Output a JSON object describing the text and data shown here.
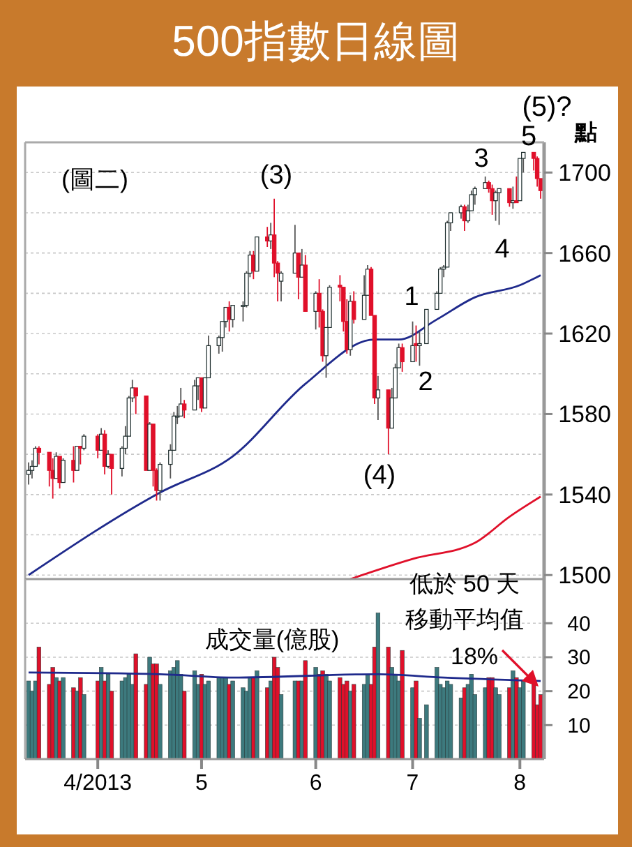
{
  "chart_data": [
    {
      "type": "candlestick",
      "title": "500指數日線圖",
      "ylabel": "點",
      "x": [
        "2013-03-12",
        "2013-03-13",
        "2013-03-14",
        "2013-03-15",
        "2013-03-18",
        "2013-03-19",
        "2013-03-20",
        "2013-03-21",
        "2013-03-22",
        "2013-03-25",
        "2013-03-26",
        "2013-03-27",
        "2013-03-28",
        "2013-04-01",
        "2013-04-02",
        "2013-04-03",
        "2013-04-04",
        "2013-04-05",
        "2013-04-08",
        "2013-04-09",
        "2013-04-10",
        "2013-04-11",
        "2013-04-12",
        "2013-04-15",
        "2013-04-16",
        "2013-04-17",
        "2013-04-18",
        "2013-04-19",
        "2013-04-22",
        "2013-04-23",
        "2013-04-24",
        "2013-04-25",
        "2013-04-26",
        "2013-04-29",
        "2013-04-30",
        "2013-05-01",
        "2013-05-02",
        "2013-05-03",
        "2013-05-06",
        "2013-05-07",
        "2013-05-08",
        "2013-05-09",
        "2013-05-10",
        "2013-05-13",
        "2013-05-14",
        "2013-05-15",
        "2013-05-16",
        "2013-05-17",
        "2013-05-20",
        "2013-05-21",
        "2013-05-22",
        "2013-05-23",
        "2013-05-24",
        "2013-05-28",
        "2013-05-29",
        "2013-05-30",
        "2013-05-31",
        "2013-06-03",
        "2013-06-04",
        "2013-06-05",
        "2013-06-06",
        "2013-06-07",
        "2013-06-10",
        "2013-06-11",
        "2013-06-12",
        "2013-06-13",
        "2013-06-14",
        "2013-06-17",
        "2013-06-18",
        "2013-06-19",
        "2013-06-20",
        "2013-06-21",
        "2013-06-24",
        "2013-06-25",
        "2013-06-26",
        "2013-06-27",
        "2013-06-28",
        "2013-07-01",
        "2013-07-02",
        "2013-07-03",
        "2013-07-05",
        "2013-07-08",
        "2013-07-09",
        "2013-07-10",
        "2013-07-11",
        "2013-07-12",
        "2013-07-15",
        "2013-07-16",
        "2013-07-17",
        "2013-07-18",
        "2013-07-19",
        "2013-07-22",
        "2013-07-23",
        "2013-07-24",
        "2013-07-25",
        "2013-07-26",
        "2013-07-29",
        "2013-07-30",
        "2013-07-31",
        "2013-08-01",
        "2013-08-02",
        "2013-08-05",
        "2013-08-06",
        "2013-08-07"
      ],
      "ohlc": [
        [
          1550,
          1556,
          1545,
          1552
        ],
        [
          1552,
          1557,
          1548,
          1554
        ],
        [
          1554,
          1564,
          1554,
          1563
        ],
        [
          1563,
          1564,
          1555,
          1561
        ],
        [
          1561,
          1561,
          1544,
          1552
        ],
        [
          1552,
          1558,
          1538,
          1548
        ],
        [
          1548,
          1561,
          1548,
          1559
        ],
        [
          1559,
          1559,
          1543,
          1546
        ],
        [
          1546,
          1558,
          1546,
          1557
        ],
        [
          1557,
          1564,
          1546,
          1552
        ],
        [
          1552,
          1564,
          1552,
          1564
        ],
        [
          1564,
          1564,
          1555,
          1563
        ],
        [
          1563,
          1570,
          1562,
          1569
        ],
        [
          1569,
          1570,
          1558,
          1562
        ],
        [
          1562,
          1573,
          1562,
          1570
        ],
        [
          1570,
          1572,
          1550,
          1554
        ],
        [
          1554,
          1562,
          1553,
          1560
        ],
        [
          1560,
          1560,
          1540,
          1553
        ],
        [
          1553,
          1564,
          1549,
          1563
        ],
        [
          1563,
          1574,
          1560,
          1569
        ],
        [
          1569,
          1589,
          1569,
          1588
        ],
        [
          1588,
          1597,
          1586,
          1593
        ],
        [
          1593,
          1593,
          1580,
          1589
        ],
        [
          1589,
          1589,
          1552,
          1552
        ],
        [
          1552,
          1576,
          1552,
          1575
        ],
        [
          1575,
          1575,
          1544,
          1552
        ],
        [
          1552,
          1553,
          1537,
          1542
        ],
        [
          1542,
          1556,
          1537,
          1555
        ],
        [
          1555,
          1565,
          1548,
          1562
        ],
        [
          1562,
          1581,
          1562,
          1579
        ],
        [
          1579,
          1584,
          1575,
          1579
        ],
        [
          1579,
          1593,
          1579,
          1585
        ],
        [
          1585,
          1587,
          1578,
          1582
        ],
        [
          1582,
          1597,
          1582,
          1594
        ],
        [
          1594,
          1598,
          1587,
          1598
        ],
        [
          1598,
          1598,
          1581,
          1583
        ],
        [
          1583,
          1598,
          1583,
          1598
        ],
        [
          1598,
          1619,
          1598,
          1614
        ],
        [
          1614,
          1619,
          1610,
          1618
        ],
        [
          1618,
          1626,
          1611,
          1626
        ],
        [
          1626,
          1633,
          1623,
          1633
        ],
        [
          1633,
          1636,
          1621,
          1627
        ],
        [
          1627,
          1634,
          1623,
          1634
        ],
        [
          1634,
          1636,
          1626,
          1634
        ],
        [
          1634,
          1651,
          1633,
          1650
        ],
        [
          1650,
          1661,
          1648,
          1659
        ],
        [
          1659,
          1661,
          1647,
          1651
        ],
        [
          1651,
          1668,
          1651,
          1668
        ],
        [
          1668,
          1673,
          1663,
          1666
        ],
        [
          1666,
          1675,
          1662,
          1669
        ],
        [
          1669,
          1687,
          1648,
          1655
        ],
        [
          1655,
          1656,
          1636,
          1650
        ],
        [
          1646,
          1651,
          1636,
          1650
        ],
        [
          1650,
          1674,
          1650,
          1660
        ],
        [
          1660,
          1660,
          1637,
          1648
        ],
        [
          1648,
          1662,
          1648,
          1654
        ],
        [
          1654,
          1659,
          1631,
          1631
        ],
        [
          1631,
          1641,
          1622,
          1640
        ],
        [
          1640,
          1647,
          1623,
          1631
        ],
        [
          1631,
          1632,
          1606,
          1609
        ],
        [
          1609,
          1623,
          1598,
          1623
        ],
        [
          1623,
          1644,
          1623,
          1643
        ],
        [
          1644,
          1649,
          1636,
          1643
        ],
        [
          1643,
          1643,
          1621,
          1626
        ],
        [
          1626,
          1637,
          1610,
          1612
        ],
        [
          1612,
          1639,
          1609,
          1636
        ],
        [
          1636,
          1641,
          1625,
          1627
        ],
        [
          1627,
          1649,
          1627,
          1639
        ],
        [
          1639,
          1654,
          1639,
          1652
        ],
        [
          1652,
          1653,
          1629,
          1629
        ],
        [
          1629,
          1629,
          1585,
          1588
        ],
        [
          1588,
          1599,
          1577,
          1592
        ],
        [
          1592,
          1592,
          1560,
          1573
        ],
        [
          1573,
          1593,
          1573,
          1588
        ],
        [
          1588,
          1605,
          1588,
          1603
        ],
        [
          1603,
          1615,
          1603,
          1613
        ],
        [
          1613,
          1615,
          1601,
          1606
        ],
        [
          1606,
          1626,
          1606,
          1614
        ],
        [
          1615,
          1624,
          1606,
          1614
        ],
        [
          1614,
          1621,
          1604,
          1615
        ],
        [
          1615,
          1632,
          1615,
          1632
        ],
        [
          1632,
          1641,
          1632,
          1640
        ],
        [
          1640,
          1653,
          1640,
          1652
        ],
        [
          1652,
          1654,
          1648,
          1653
        ],
        [
          1653,
          1676,
          1653,
          1675
        ],
        [
          1675,
          1680,
          1671,
          1680
        ],
        [
          1680,
          1684,
          1677,
          1683
        ],
        [
          1683,
          1684,
          1671,
          1676
        ],
        [
          1676,
          1684,
          1675,
          1681
        ],
        [
          1681,
          1691,
          1681,
          1689
        ],
        [
          1689,
          1693,
          1684,
          1692
        ],
        [
          1692,
          1698,
          1692,
          1695
        ],
        [
          1695,
          1696,
          1690,
          1692
        ],
        [
          1692,
          1694,
          1679,
          1686
        ],
        [
          1686,
          1691,
          1676,
          1690
        ],
        [
          1690,
          1692,
          1674,
          1692
        ],
        [
          1692,
          1692,
          1683,
          1685
        ],
        [
          1685,
          1693,
          1682,
          1686
        ],
        [
          1686,
          1698,
          1685,
          1685
        ],
        [
          1686,
          1707,
          1686,
          1707
        ],
        [
          1707,
          1710,
          1700,
          1710
        ],
        [
          1710,
          1710,
          1701,
          1707
        ],
        [
          1707,
          1708,
          1693,
          1697
        ],
        [
          1697,
          1697,
          1687,
          1691
        ]
      ],
      "series": [
        {
          "type": "line",
          "color": "#1f2a8c",
          "x": [
            "2013-03-12",
            "2013-04-19",
            "2013-05-10",
            "2013-05-31",
            "2013-06-20",
            "2013-06-27",
            "2013-07-08",
            "2013-07-19",
            "2013-08-01",
            "2013-08-07"
          ],
          "values": [
            1500,
            1541,
            1559,
            1595,
            1617,
            1617,
            1627,
            1638,
            1644,
            1649
          ]
        },
        {
          "type": "line",
          "color": "#e0102a",
          "x": [
            "2013-06-13",
            "2013-07-01",
            "2013-07-19",
            "2013-07-29",
            "2013-08-07"
          ],
          "values": [
            1498,
            1508,
            1516,
            1529,
            1539
          ]
        }
      ],
      "xlim": [
        "2013-03-11",
        "2013-08-08"
      ],
      "ylim": [
        1498,
        1715
      ],
      "yticks": [
        1500,
        {
          "value": 1520,
          "label": null
        },
        1540,
        {
          "value": 1560,
          "label": null
        },
        1580,
        {
          "value": 1600,
          "label": null
        },
        1620,
        {
          "value": 1640,
          "label": null
        },
        1660,
        {
          "value": 1680,
          "label": null
        },
        1700
      ],
      "tick_labels": "y",
      "grid": "y",
      "annotations": [
        "(圖二)",
        "(5)?",
        "5",
        "(3)",
        "(4)",
        "1",
        "2",
        "3",
        "4"
      ]
    },
    {
      "type": "bar",
      "xlim": [
        "2013-03-11",
        "2013-08-08"
      ],
      "ylim": [
        0,
        53
      ],
      "yticks": [
        10,
        20,
        30,
        40
      ],
      "xticks": [
        {
          "value": "2013-04-01",
          "label": "4/2013"
        },
        {
          "value": "2013-05-01",
          "label": "5"
        },
        {
          "value": "2013-06-03",
          "label": "6"
        },
        {
          "value": "2013-07-01",
          "label": "7"
        },
        {
          "value": "2013-08-01",
          "label": "8"
        }
      ],
      "grid": "y",
      "series": [
        {
          "type": "bar",
          "x": [
            "2013-03-12",
            "2013-03-13",
            "2013-03-14",
            "2013-03-15",
            "2013-03-18",
            "2013-03-19",
            "2013-03-20",
            "2013-03-21",
            "2013-03-22",
            "2013-03-25",
            "2013-03-26",
            "2013-03-27",
            "2013-03-28",
            "2013-04-01",
            "2013-04-02",
            "2013-04-03",
            "2013-04-04",
            "2013-04-05",
            "2013-04-08",
            "2013-04-09",
            "2013-04-10",
            "2013-04-11",
            "2013-04-12",
            "2013-04-15",
            "2013-04-16",
            "2013-04-17",
            "2013-04-18",
            "2013-04-19",
            "2013-04-22",
            "2013-04-23",
            "2013-04-24",
            "2013-04-25",
            "2013-04-26",
            "2013-04-29",
            "2013-04-30",
            "2013-05-01",
            "2013-05-02",
            "2013-05-03",
            "2013-05-06",
            "2013-05-07",
            "2013-05-08",
            "2013-05-09",
            "2013-05-10",
            "2013-05-13",
            "2013-05-14",
            "2013-05-15",
            "2013-05-16",
            "2013-05-17",
            "2013-05-20",
            "2013-05-21",
            "2013-05-22",
            "2013-05-23",
            "2013-05-24",
            "2013-05-28",
            "2013-05-29",
            "2013-05-30",
            "2013-05-31",
            "2013-06-03",
            "2013-06-04",
            "2013-06-05",
            "2013-06-06",
            "2013-06-07",
            "2013-06-10",
            "2013-06-11",
            "2013-06-12",
            "2013-06-13",
            "2013-06-14",
            "2013-06-17",
            "2013-06-18",
            "2013-06-19",
            "2013-06-20",
            "2013-06-21",
            "2013-06-24",
            "2013-06-25",
            "2013-06-26",
            "2013-06-27",
            "2013-06-28",
            "2013-07-01",
            "2013-07-02",
            "2013-07-03",
            "2013-07-05",
            "2013-07-08",
            "2013-07-09",
            "2013-07-10",
            "2013-07-11",
            "2013-07-12",
            "2013-07-15",
            "2013-07-16",
            "2013-07-17",
            "2013-07-18",
            "2013-07-19",
            "2013-07-22",
            "2013-07-23",
            "2013-07-24",
            "2013-07-25",
            "2013-07-26",
            "2013-07-29",
            "2013-07-30",
            "2013-07-31",
            "2013-08-01",
            "2013-08-02",
            "2013-08-05",
            "2013-08-06",
            "2013-08-07"
          ],
          "colors": [
            "#3d7a7e",
            "#3d7a7e",
            "#3d7a7e",
            "#e0102a",
            "#e0102a",
            "#e0102a",
            "#3d7a7e",
            "#e0102a",
            "#3d7a7e",
            "#e0102a",
            "#3d7a7e",
            "#e0102a",
            "#3d7a7e",
            "#e0102a",
            "#3d7a7e",
            "#e0102a",
            "#3d7a7e",
            "#e0102a",
            "#3d7a7e",
            "#3d7a7e",
            "#3d7a7e",
            "#3d7a7e",
            "#e0102a",
            "#e0102a",
            "#3d7a7e",
            "#e0102a",
            "#e0102a",
            "#3d7a7e",
            "#3d7a7e",
            "#3d7a7e",
            "#3d7a7e",
            "#3d7a7e",
            "#e0102a",
            "#3d7a7e",
            "#3d7a7e",
            "#e0102a",
            "#3d7a7e",
            "#3d7a7e",
            "#3d7a7e",
            "#3d7a7e",
            "#3d7a7e",
            "#e0102a",
            "#3d7a7e",
            "#3d7a7e",
            "#3d7a7e",
            "#3d7a7e",
            "#e0102a",
            "#3d7a7e",
            "#e0102a",
            "#3d7a7e",
            "#e0102a",
            "#e0102a",
            "#3d7a7e",
            "#3d7a7e",
            "#e0102a",
            "#3d7a7e",
            "#e0102a",
            "#3d7a7e",
            "#e0102a",
            "#e0102a",
            "#3d7a7e",
            "#3d7a7e",
            "#e0102a",
            "#e0102a",
            "#e0102a",
            "#3d7a7e",
            "#e0102a",
            "#3d7a7e",
            "#3d7a7e",
            "#e0102a",
            "#e0102a",
            "#3d7a7e",
            "#e0102a",
            "#3d7a7e",
            "#3d7a7e",
            "#3d7a7e",
            "#e0102a",
            "#3d7a7e",
            "#e0102a",
            "#3d7a7e",
            "#3d7a7e",
            "#3d7a7e",
            "#3d7a7e",
            "#3d7a7e",
            "#3d7a7e",
            "#3d7a7e",
            "#3d7a7e",
            "#e0102a",
            "#3d7a7e",
            "#3d7a7e",
            "#3d7a7e",
            "#3d7a7e",
            "#e0102a",
            "#e0102a",
            "#3d7a7e",
            "#3d7a7e",
            "#e0102a",
            "#3d7a7e",
            "#e0102a",
            "#3d7a7e",
            "#3d7a7e",
            "#e0102a",
            "#e0102a",
            "#e0102a"
          ],
          "values": [
            23,
            20,
            23,
            33,
            22,
            27,
            24,
            23,
            24,
            21,
            20,
            24,
            19,
            23,
            27,
            23,
            25,
            20,
            23,
            24,
            25,
            22,
            31,
            22,
            30,
            28,
            28,
            22,
            26,
            27,
            29,
            25,
            20,
            26,
            22,
            25,
            22,
            23,
            24,
            24,
            24,
            22,
            23,
            21,
            20,
            24,
            24,
            26,
            21,
            23,
            30,
            27,
            19,
            23,
            23,
            23,
            29,
            27,
            25,
            26,
            25,
            23,
            24,
            22,
            23,
            20,
            22,
            22,
            25,
            22,
            33,
            43,
            33,
            27,
            25,
            23,
            32,
            21,
            23,
            12,
            16,
            27,
            22,
            21,
            23,
            22,
            18,
            21,
            22,
            25,
            19,
            21,
            24,
            24,
            21,
            19,
            21,
            26,
            24,
            21,
            23,
            22,
            16,
            19
          ]
        },
        {
          "type": "line",
          "color": "#1f2a8c",
          "x": [
            "2013-03-12",
            "2013-04-19",
            "2013-05-10",
            "2013-06-21",
            "2013-07-10",
            "2013-08-07"
          ],
          "values": [
            25.5,
            25,
            24,
            25,
            24,
            23
          ]
        }
      ],
      "annotations": [
        "成交量(億股)",
        "低於 50 天移動平均值",
        "18%"
      ]
    }
  ]
}
